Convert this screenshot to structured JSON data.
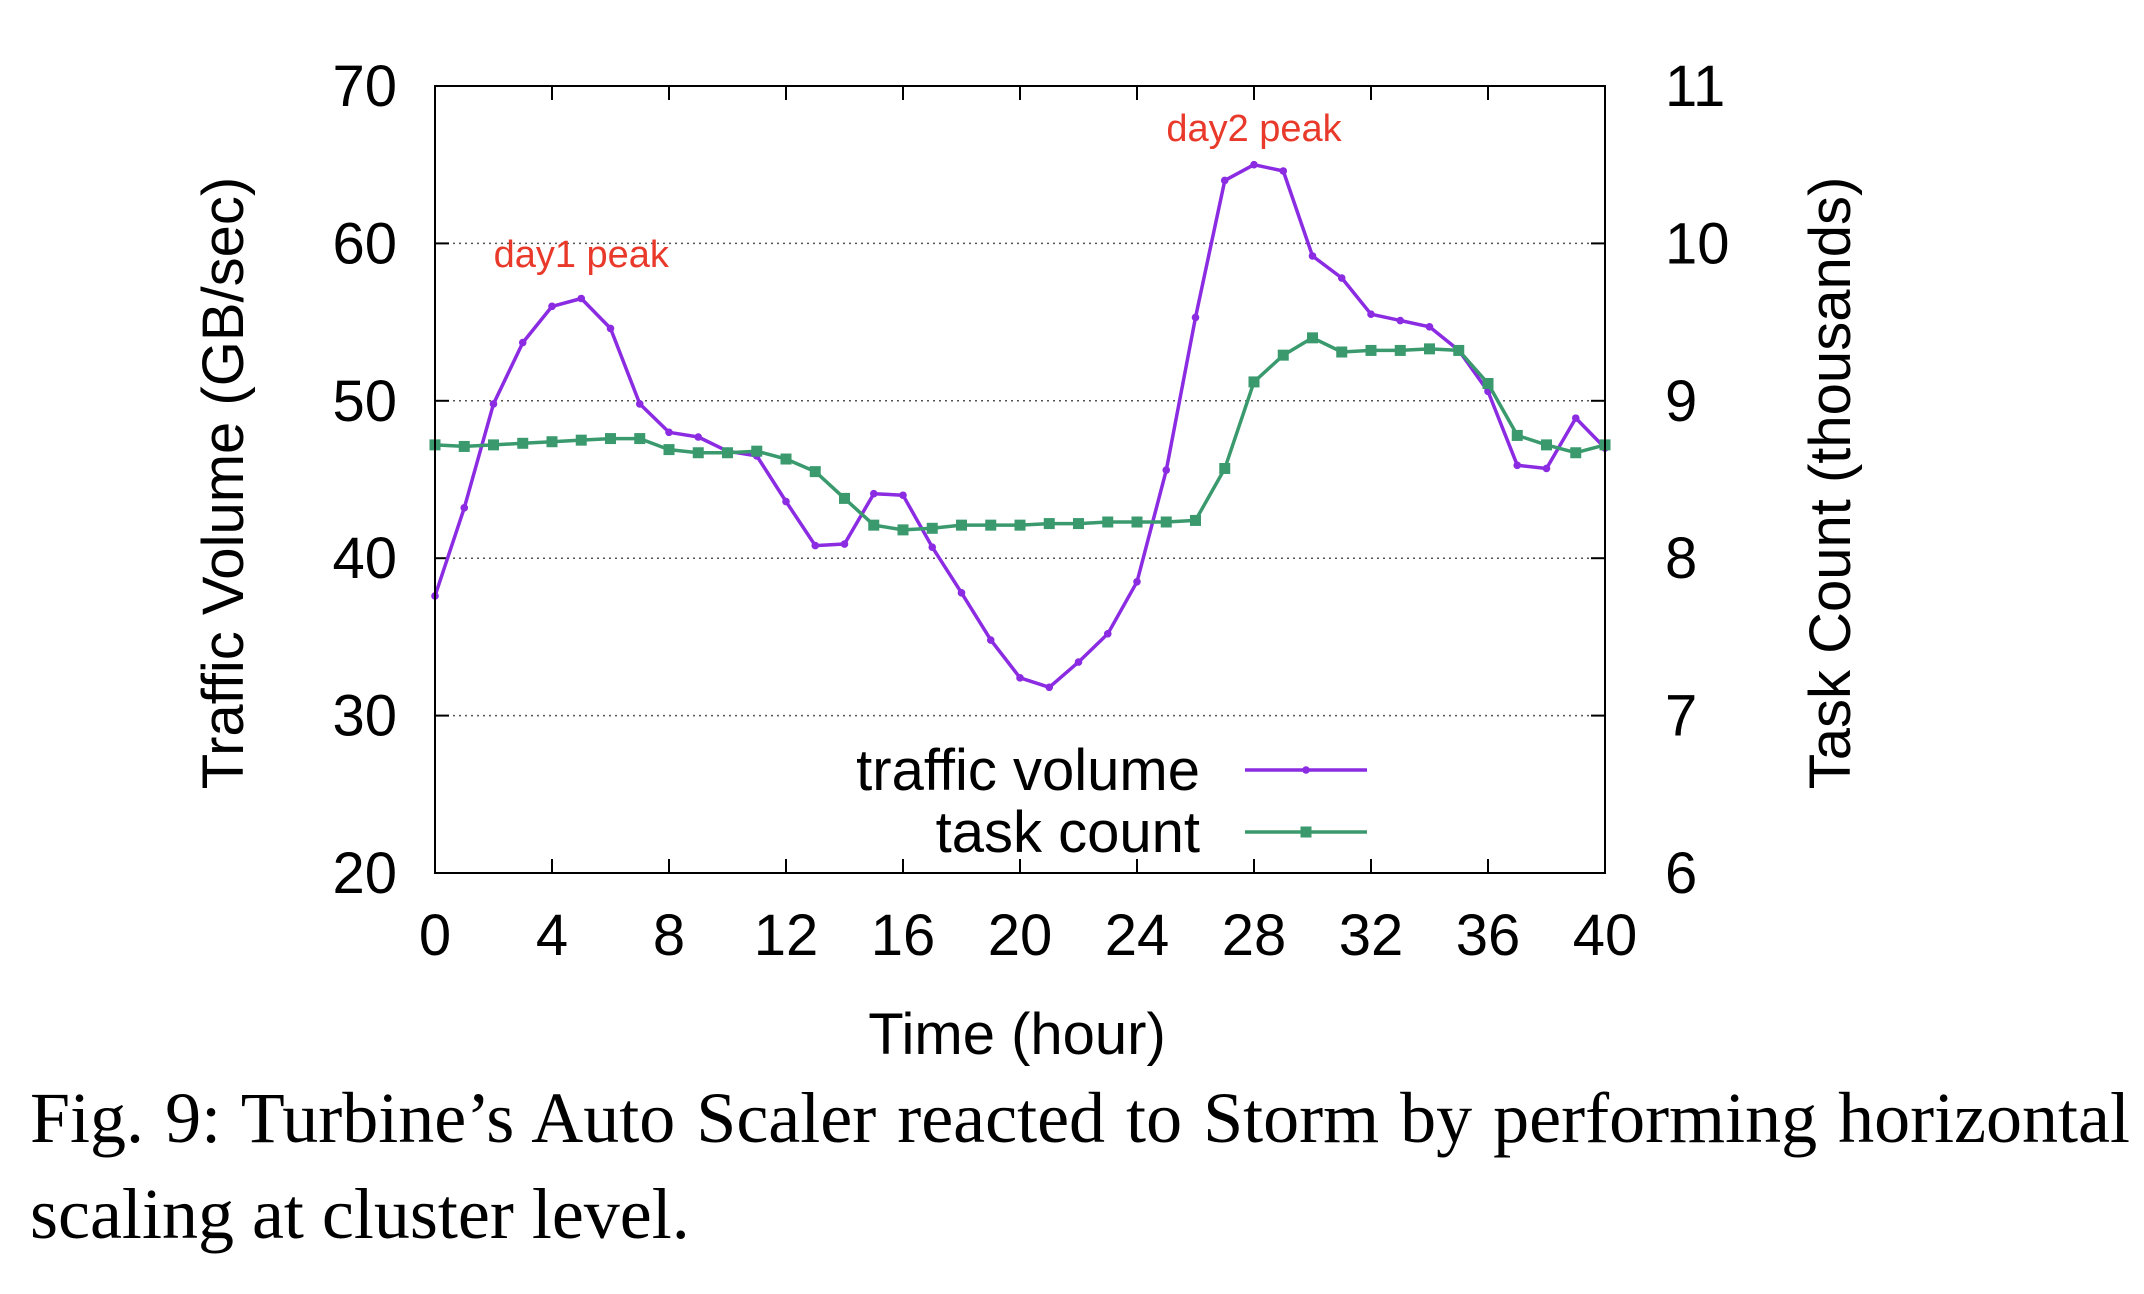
{
  "chart_data": {
    "type": "line",
    "xlabel": "Time (hour)",
    "ylabel": "Traffic Volume (GB/sec)",
    "y2label": "Task Count (thousands)",
    "xlim": [
      0,
      40
    ],
    "ylim": [
      20,
      70
    ],
    "y2lim": [
      6,
      11
    ],
    "xticks": [
      0,
      4,
      8,
      12,
      16,
      20,
      24,
      28,
      32,
      36,
      40
    ],
    "yticks": [
      20,
      30,
      40,
      50,
      60,
      70
    ],
    "y2ticks": [
      6,
      7,
      8,
      9,
      10,
      11
    ],
    "grid": "horizontal dotted",
    "legend_position": "bottom-center",
    "x": [
      0,
      1,
      2,
      3,
      4,
      5,
      6,
      7,
      8,
      9,
      10,
      11,
      12,
      13,
      14,
      15,
      16,
      17,
      18,
      19,
      20,
      21,
      22,
      23,
      24,
      25,
      26,
      27,
      28,
      29,
      30,
      31,
      32,
      33,
      34,
      35,
      36,
      37,
      38,
      39,
      40
    ],
    "series": [
      {
        "name": "traffic volume",
        "axis": "left",
        "color": "#8b2be2",
        "marker": "dot",
        "values": [
          37.6,
          43.2,
          49.8,
          53.7,
          56.0,
          56.5,
          54.6,
          49.8,
          48.0,
          47.7,
          46.8,
          46.5,
          43.6,
          40.8,
          40.9,
          44.1,
          44.0,
          40.7,
          37.8,
          34.8,
          32.4,
          31.8,
          33.4,
          35.2,
          38.5,
          45.6,
          55.3,
          64.0,
          65.0,
          64.6,
          59.2,
          57.8,
          55.5,
          55.1,
          54.7,
          53.2,
          50.6,
          45.9,
          45.7,
          48.9,
          47.0
        ]
      },
      {
        "name": "task count",
        "axis": "right",
        "color": "#3a9a6e",
        "marker": "square",
        "values": [
          8.72,
          8.71,
          8.72,
          8.73,
          8.74,
          8.75,
          8.76,
          8.76,
          8.69,
          8.67,
          8.67,
          8.68,
          8.63,
          8.55,
          8.38,
          8.21,
          8.18,
          8.19,
          8.21,
          8.21,
          8.21,
          8.22,
          8.22,
          8.23,
          8.23,
          8.23,
          8.24,
          8.57,
          9.12,
          9.29,
          9.4,
          9.31,
          9.32,
          9.32,
          9.33,
          9.32,
          9.11,
          8.78,
          8.72,
          8.67,
          8.72
        ]
      }
    ],
    "annotations": [
      {
        "text": "day1 peak",
        "x": 5,
        "y": 58.5,
        "color": "#e8392a"
      },
      {
        "text": "day2 peak",
        "x": 28,
        "y": 66.5,
        "color": "#e8392a"
      }
    ]
  },
  "caption": "Fig. 9: Turbine’s Auto Scaler reacted to Storm by performing horizontal scaling at cluster level."
}
